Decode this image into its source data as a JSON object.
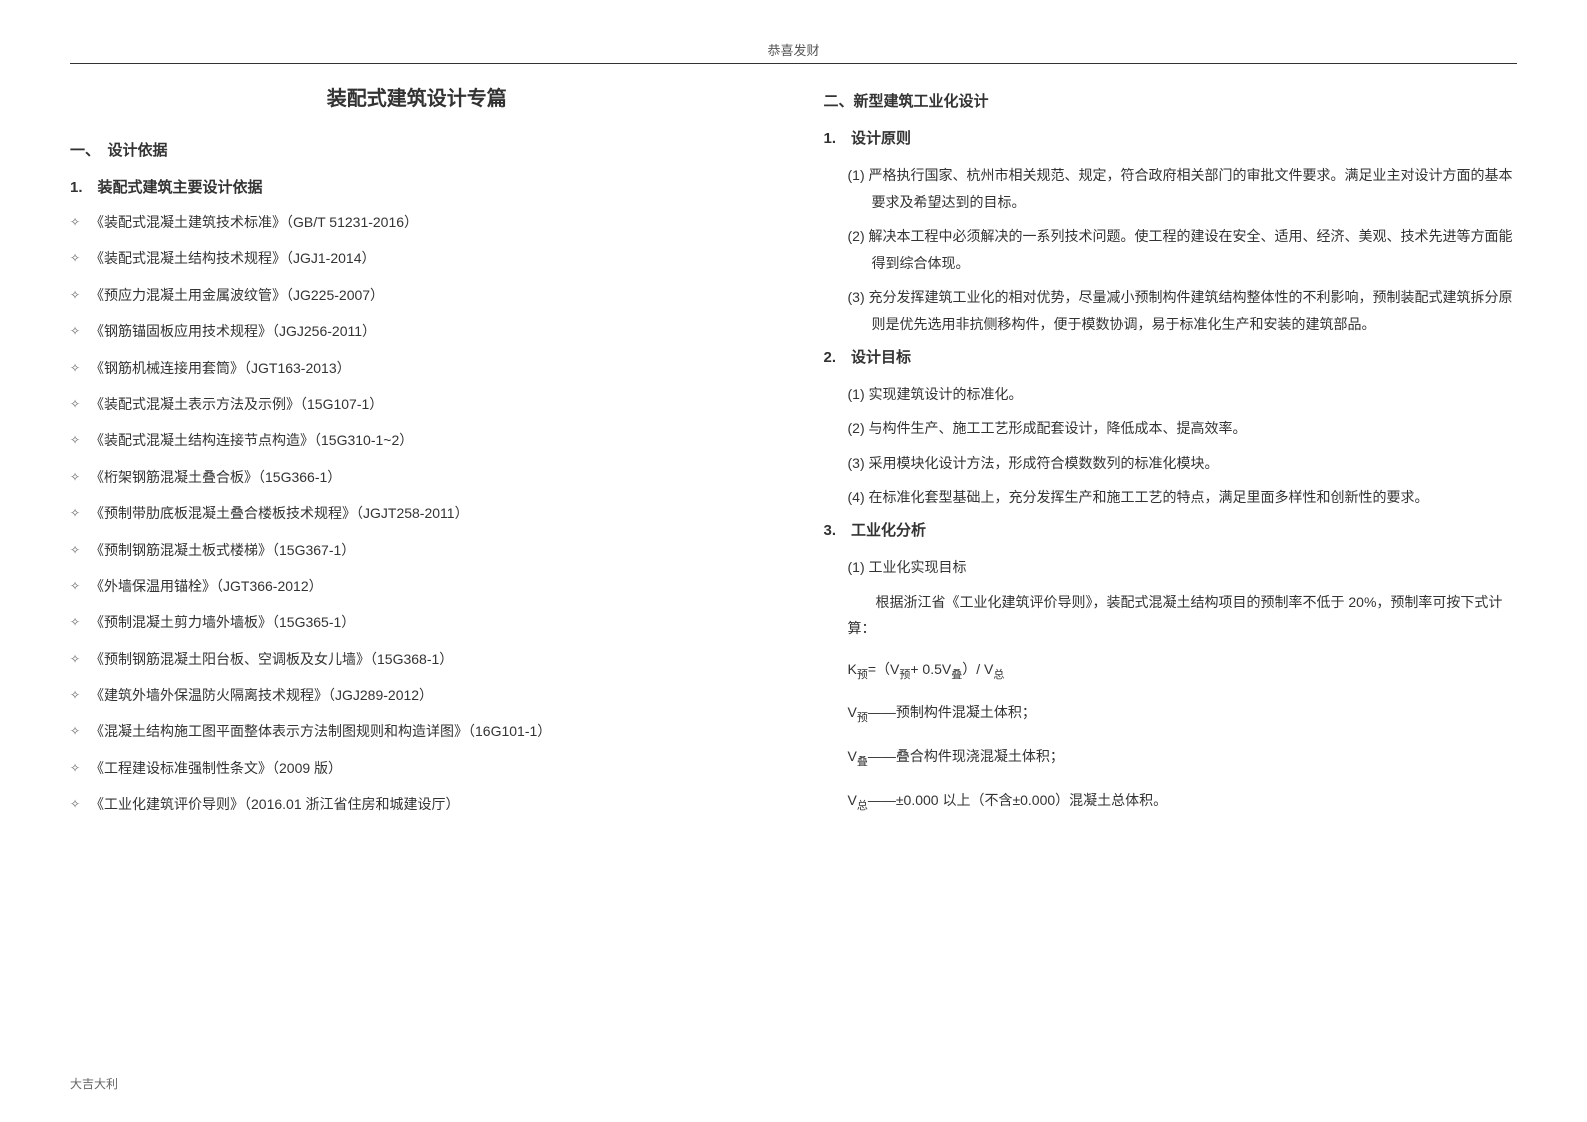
{
  "header": "恭喜发财",
  "footer": "大吉大利",
  "title": "装配式建筑设计专篇",
  "left": {
    "section1_heading": "一、　设计依据",
    "section1_sub": "1.　装配式建筑主要设计依据",
    "refs": [
      "《装配式混凝土建筑技术标准》（GB/T 51231-2016）",
      "《装配式混凝土结构技术规程》（JGJ1-2014）",
      "《预应力混凝土用金属波纹管》（JG225-2007）",
      "《钢筋锚固板应用技术规程》（JGJ256-2011）",
      "《钢筋机械连接用套筒》（JGT163-2013）",
      "《装配式混凝土表示方法及示例》（15G107-1）",
      "《装配式混凝土结构连接节点构造》（15G310-1~2）",
      "《桁架钢筋混凝土叠合板》（15G366-1）",
      "《预制带肋底板混凝土叠合楼板技术规程》（JGJT258-2011）",
      "《预制钢筋混凝土板式楼梯》（15G367-1）",
      "《外墙保温用锚栓》（JGT366-2012）",
      "《预制混凝土剪力墙外墙板》（15G365-1）",
      "《预制钢筋混凝土阳台板、空调板及女儿墙》（15G368-1）",
      "《建筑外墙外保温防火隔离技术规程》（JGJ289-2012）",
      "《混凝土结构施工图平面整体表示方法制图规则和构造详图》（16G101-1）",
      "《工程建设标准强制性条文》（2009 版）",
      "《工业化建筑评价导则》（2016.01 浙江省住房和城建设厅）"
    ]
  },
  "right": {
    "section2_heading": "二、新型建筑工业化设计",
    "sub1": "1.　设计原则",
    "principles": [
      "(1) 严格执行国家、杭州市相关规范、规定，符合政府相关部门的审批文件要求。满足业主对设计方面的基本要求及希望达到的目标。",
      "(2) 解决本工程中必须解决的一系列技术问题。使工程的建设在安全、适用、经济、美观、技术先进等方面能得到综合体现。",
      "(3) 充分发挥建筑工业化的相对优势，尽量减小预制构件建筑结构整体性的不利影响，预制装配式建筑拆分原则是优先选用非抗侧移构件，便于模数协调，易于标准化生产和安装的建筑部品。"
    ],
    "sub2": "2.　设计目标",
    "goals": [
      "(1) 实现建筑设计的标准化。",
      "(2) 与构件生产、施工工艺形成配套设计，降低成本、提高效率。",
      "(3) 采用模块化设计方法，形成符合模数数列的标准化模块。",
      "(4) 在标准化套型基础上，充分发挥生产和施工工艺的特点，满足里面多样性和创新性的要求。"
    ],
    "sub3": "3.　工业化分析",
    "analysis_head": "(1) 工业化实现目标",
    "analysis_para": "根据浙江省《工业化建筑评价导则》，装配式混凝土结构项目的预制率不低于 20%，预制率可按下式计算：",
    "formula_prefix": "K",
    "formula_body": "=（V",
    "formula_plus": "+ 0.5V",
    "formula_div": "）/ V",
    "def1_prefix": "V",
    "def1": "——预制构件混凝土体积；",
    "def2_prefix": "V",
    "def2": "——叠合构件现浇混凝土体积；",
    "def3_prefix": "V",
    "def3": "——±0.000 以上（不含±0.000）混凝土总体积。",
    "sub_yu": "预",
    "sub_die": "叠",
    "sub_zong": "总"
  }
}
